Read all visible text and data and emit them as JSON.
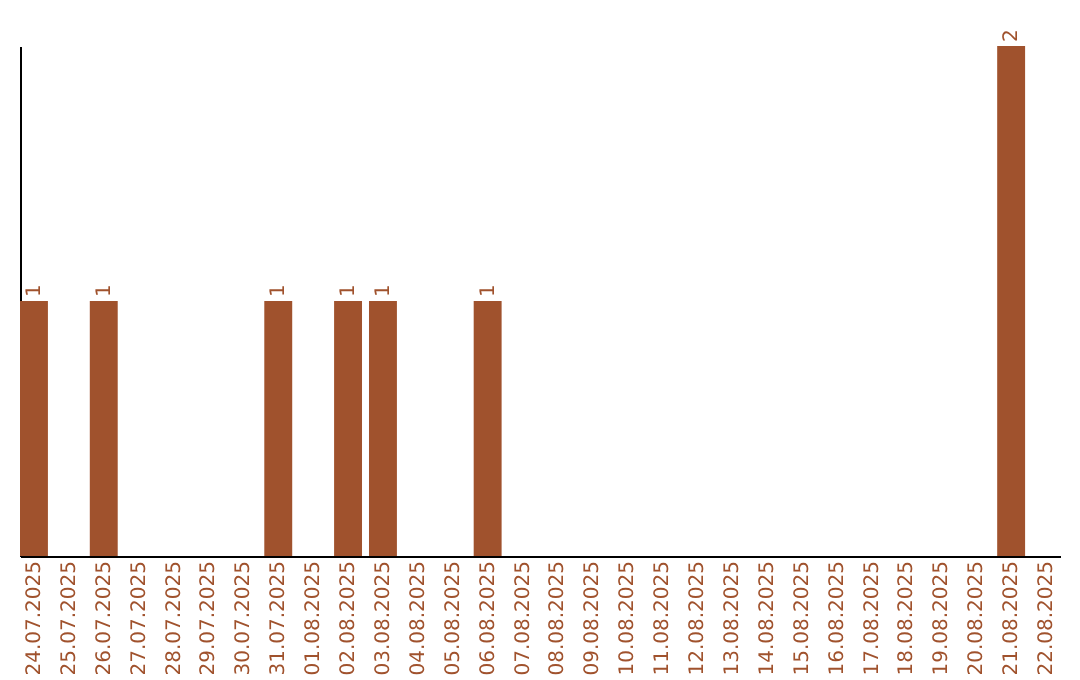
{
  "chart_data": {
    "type": "bar",
    "categories": [
      "24.07.2025",
      "25.07.2025",
      "26.07.2025",
      "27.07.2025",
      "28.07.2025",
      "29.07.2025",
      "30.07.2025",
      "31.07.2025",
      "01.08.2025",
      "02.08.2025",
      "03.08.2025",
      "04.08.2025",
      "05.08.2025",
      "06.08.2025",
      "07.08.2025",
      "08.08.2025",
      "09.08.2025",
      "10.08.2025",
      "11.08.2025",
      "12.08.2025",
      "13.08.2025",
      "14.08.2025",
      "15.08.2025",
      "16.08.2025",
      "17.08.2025",
      "18.08.2025",
      "19.08.2025",
      "20.08.2025",
      "21.08.2025",
      "22.08.2025"
    ],
    "values": [
      1,
      0,
      1,
      0,
      0,
      0,
      0,
      1,
      0,
      1,
      1,
      0,
      0,
      1,
      0,
      0,
      0,
      0,
      0,
      0,
      0,
      0,
      0,
      0,
      0,
      0,
      0,
      0,
      2,
      0
    ],
    "value_labels": [
      "1",
      null,
      "1",
      null,
      null,
      null,
      null,
      "1",
      null,
      "1",
      "1",
      null,
      null,
      "1",
      null,
      null,
      null,
      null,
      null,
      null,
      null,
      null,
      null,
      null,
      null,
      null,
      null,
      null,
      "2",
      null
    ],
    "color": "#a0522d",
    "tick_labels": "x",
    "grid": false
  }
}
